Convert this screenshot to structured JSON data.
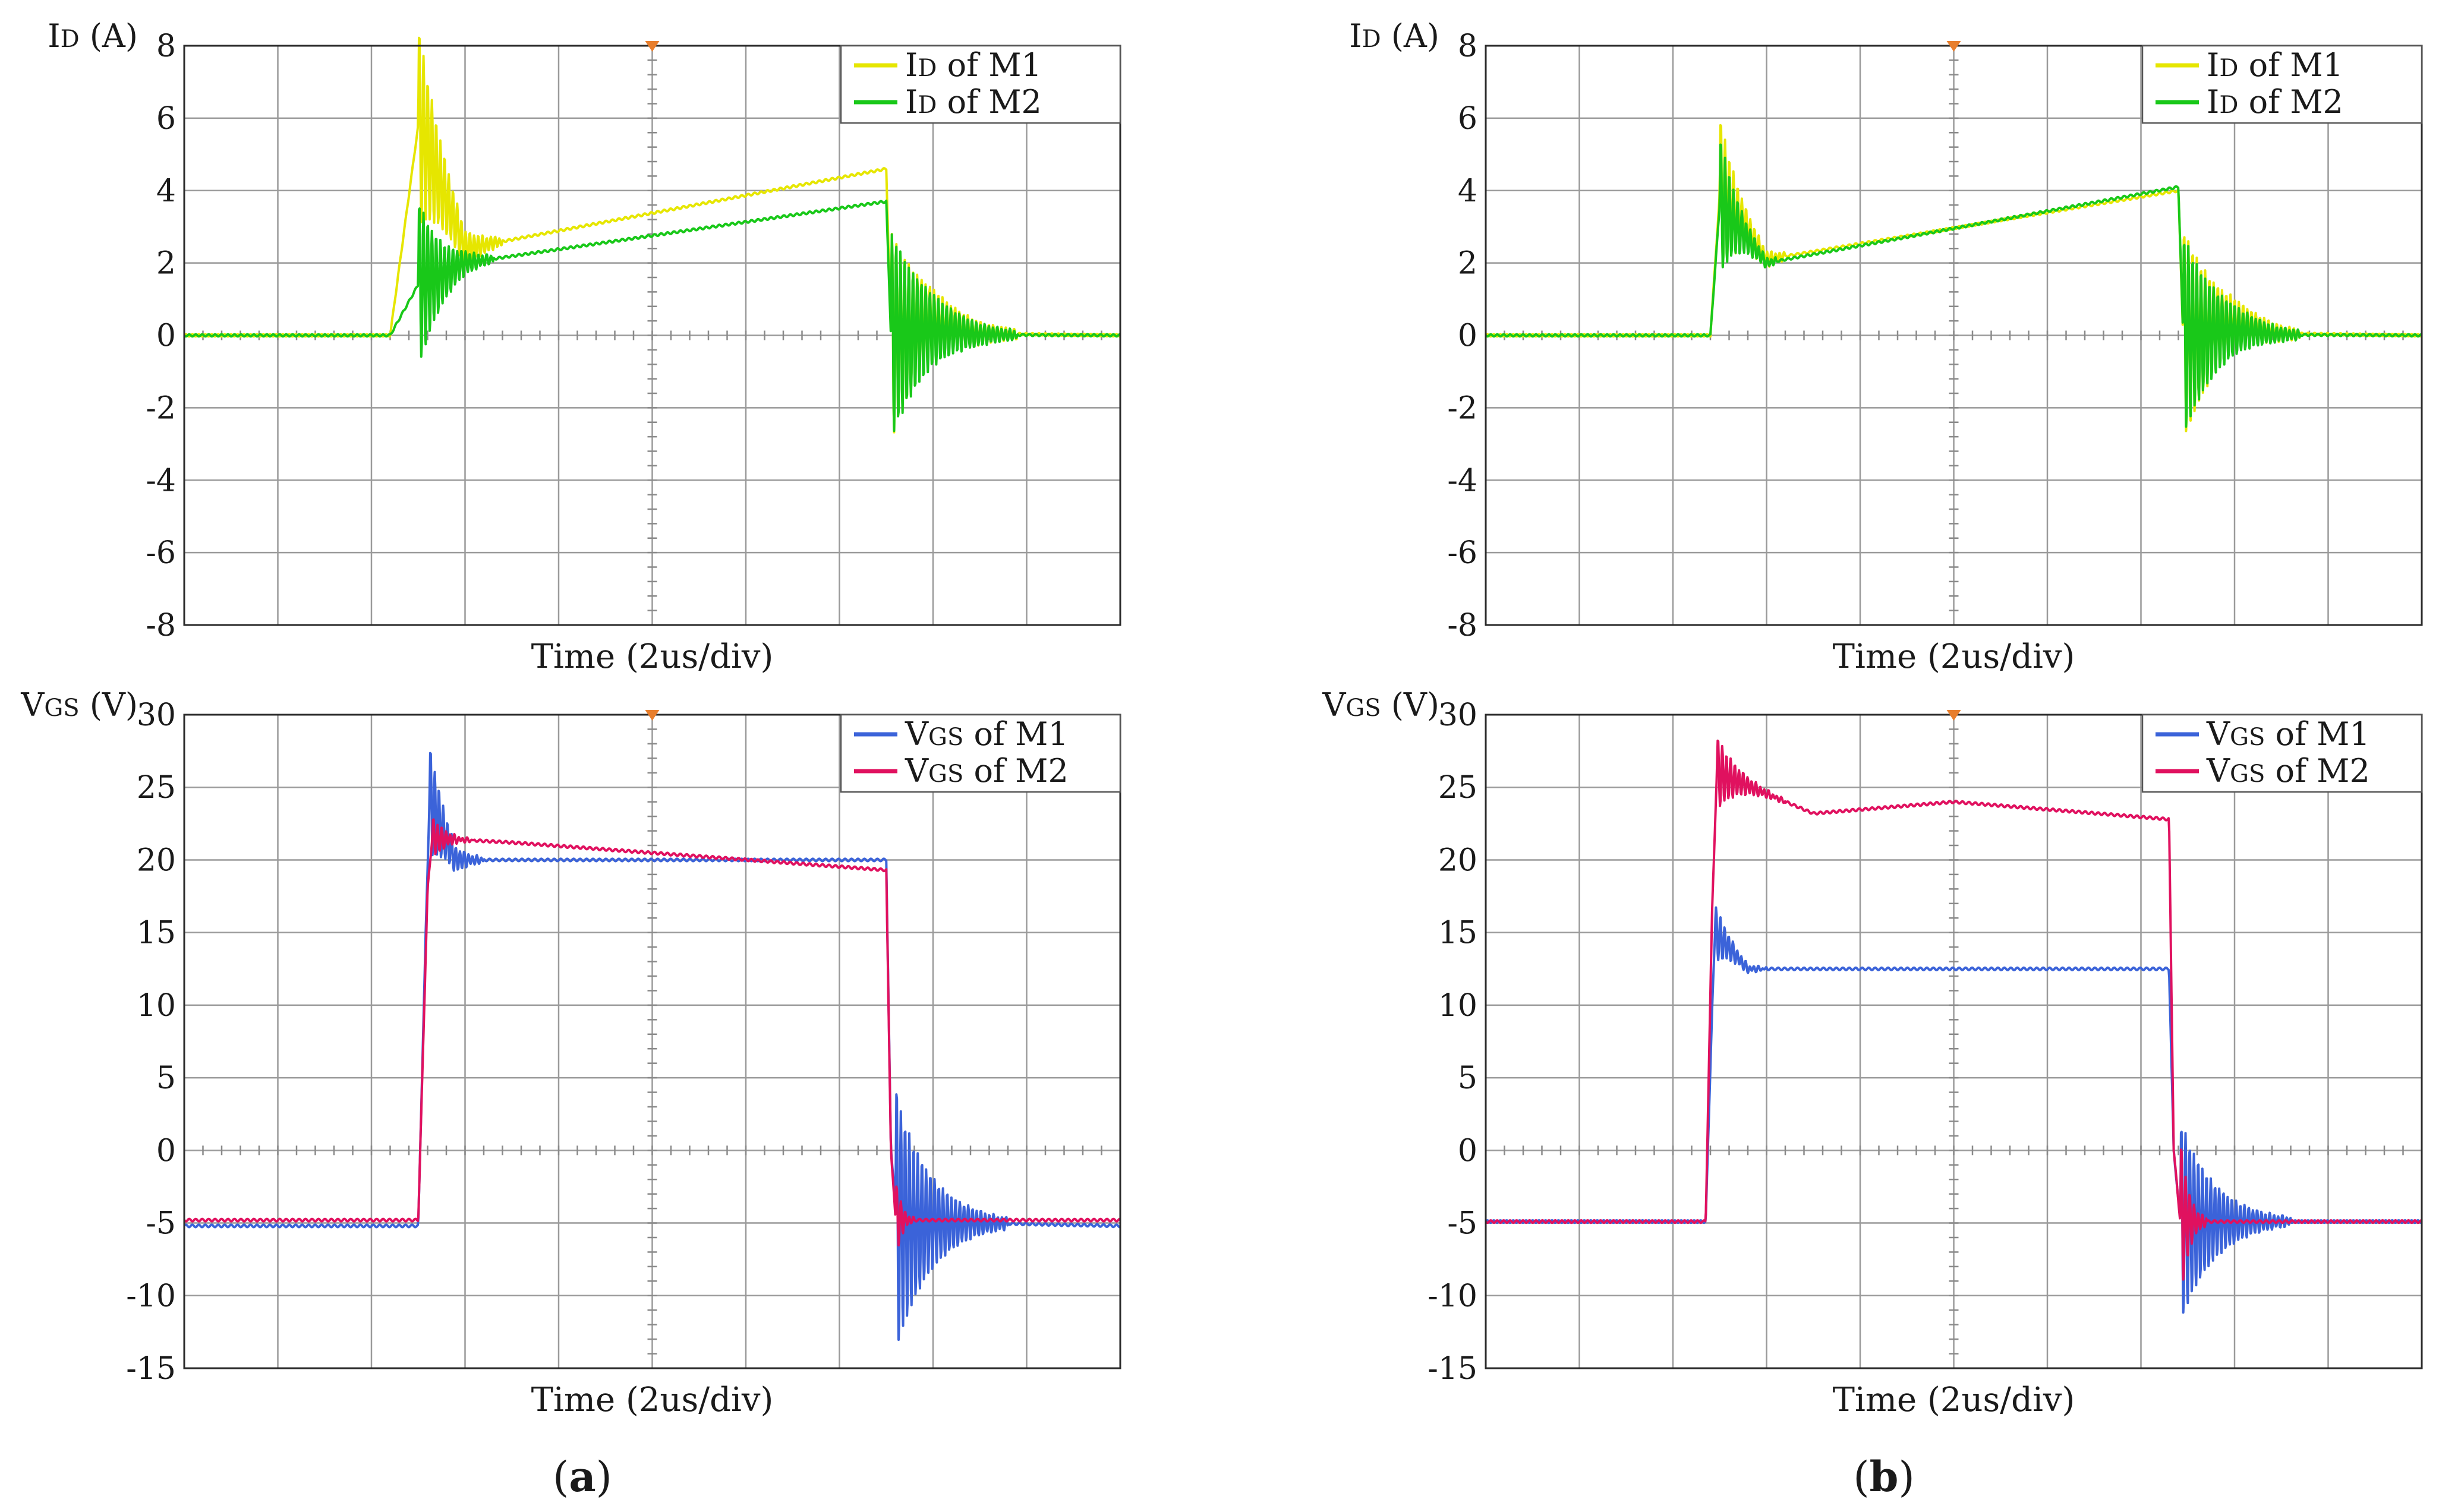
{
  "figure": {
    "captions": [
      {
        "prefix": "(",
        "letter": "a",
        "suffix": ")"
      },
      {
        "prefix": "(",
        "letter": "b",
        "suffix": ")"
      }
    ]
  },
  "chart_data": [
    {
      "id": "a-current",
      "type": "line",
      "panel": "a",
      "ylabel_main": "I",
      "ylabel_sub": "D",
      "ylabel_unit": " (A)",
      "xlabel": "Time (2us/div)",
      "ylim": [
        -8,
        8
      ],
      "yticks": [
        8,
        6,
        4,
        2,
        0,
        -2,
        -4,
        -6,
        -8
      ],
      "x_divisions": 10,
      "grid": true,
      "legend_position": "top-right",
      "series": [
        {
          "key": "m1",
          "name_main": "I",
          "name_sub": "D",
          "name_rest": " of M1",
          "color": "#e6e600",
          "x": [
            0,
            2.2,
            2.5,
            3.0,
            7.5,
            7.55,
            8.0,
            8.5,
            10
          ],
          "y": [
            0,
            0,
            5.8,
            2.4,
            4.6,
            0.0,
            0.3,
            0.05,
            0
          ],
          "ringing": [
            {
              "t0": 2.5,
              "t1": 3.4,
              "amp": 2.8
            },
            {
              "t0": 7.55,
              "t1": 8.9,
              "amp": 2.9
            }
          ]
        },
        {
          "key": "m2",
          "name_main": "I",
          "name_sub": "D",
          "name_rest": " of M2",
          "color": "#19c819",
          "x": [
            0,
            2.2,
            2.5,
            3.0,
            7.5,
            7.55,
            8.0,
            8.5,
            10
          ],
          "y": [
            0,
            0,
            1.4,
            2.0,
            3.7,
            0.0,
            0.15,
            0.02,
            0
          ],
          "ringing": [
            {
              "t0": 2.5,
              "t1": 3.3,
              "amp": 2.4
            },
            {
              "t0": 7.55,
              "t1": 8.9,
              "amp": 2.9
            }
          ]
        }
      ]
    },
    {
      "id": "b-current",
      "type": "line",
      "panel": "b",
      "ylabel_main": "I",
      "ylabel_sub": "D",
      "ylabel_unit": " (A)",
      "xlabel": "Time (2us/div)",
      "ylim": [
        -8,
        8
      ],
      "yticks": [
        8,
        6,
        4,
        2,
        0,
        -2,
        -4,
        -6,
        -8
      ],
      "x_divisions": 10,
      "grid": true,
      "legend_position": "top-right",
      "series": [
        {
          "key": "m1",
          "name_main": "I",
          "name_sub": "D",
          "name_rest": " of M1",
          "color": "#e6e600",
          "x": [
            0,
            2.4,
            2.5,
            3.0,
            7.4,
            7.45,
            8.0,
            8.5,
            10
          ],
          "y": [
            0,
            0,
            3.9,
            2.1,
            4.0,
            0.0,
            0.3,
            0.05,
            0
          ],
          "ringing": [
            {
              "t0": 2.5,
              "t1": 3.2,
              "amp": 2.2
            },
            {
              "t0": 7.45,
              "t1": 8.7,
              "amp": 3.0
            }
          ]
        },
        {
          "key": "m2",
          "name_main": "I",
          "name_sub": "D",
          "name_rest": " of M2",
          "color": "#19c819",
          "x": [
            0,
            2.4,
            2.5,
            3.0,
            7.4,
            7.45,
            8.0,
            8.5,
            10
          ],
          "y": [
            0,
            0,
            3.6,
            2.0,
            4.1,
            0.0,
            0.15,
            0.02,
            0
          ],
          "ringing": [
            {
              "t0": 2.5,
              "t1": 3.1,
              "amp": 2.0
            },
            {
              "t0": 7.45,
              "t1": 8.7,
              "amp": 2.8
            }
          ]
        }
      ]
    },
    {
      "id": "a-voltage",
      "type": "line",
      "panel": "a",
      "ylabel_main": "V",
      "ylabel_sub": "GS",
      "ylabel_unit": " (V)",
      "xlabel": "Time (2us/div)",
      "ylim": [
        -15,
        30
      ],
      "yticks": [
        30,
        25,
        20,
        15,
        10,
        5,
        0,
        -5,
        -10,
        -15
      ],
      "x_divisions": 10,
      "grid": true,
      "legend_position": "top-right",
      "series": [
        {
          "key": "m1",
          "name_main": "V",
          "name_sub": "GS",
          "name_rest": " of M1",
          "color": "#3b63d9",
          "x": [
            0,
            2.5,
            2.58,
            2.62,
            2.9,
            7.5,
            7.55,
            7.62,
            8.5,
            10
          ],
          "y": [
            -5.2,
            -5.2,
            15,
            24,
            20,
            20,
            0,
            -5.0,
            -5.0,
            -5.2
          ],
          "ringing": [
            {
              "t0": 2.62,
              "t1": 3.2,
              "amp": 4.0
            },
            {
              "t0": 7.6,
              "t1": 8.8,
              "amp": 9.0
            }
          ]
        },
        {
          "key": "m2",
          "name_main": "V",
          "name_sub": "GS",
          "name_rest": " of M2",
          "color": "#e0115f",
          "x": [
            0,
            2.5,
            2.6,
            2.65,
            3.5,
            7.5,
            7.55,
            7.6,
            8.5,
            10
          ],
          "y": [
            -4.8,
            -4.8,
            18,
            21.5,
            21.2,
            19.3,
            0,
            -4.8,
            -4.8,
            -4.8
          ],
          "ringing": [
            {
              "t0": 2.65,
              "t1": 3.1,
              "amp": 1.5
            },
            {
              "t0": 7.6,
              "t1": 7.8,
              "amp": 3.0
            }
          ]
        }
      ]
    },
    {
      "id": "b-voltage",
      "type": "line",
      "panel": "b",
      "ylabel_main": "V",
      "ylabel_sub": "GS",
      "ylabel_unit": " (V)",
      "xlabel": "Time (2us/div)",
      "ylim": [
        -15,
        30
      ],
      "yticks": [
        30,
        25,
        20,
        15,
        10,
        5,
        0,
        -5,
        -10,
        -15
      ],
      "x_divisions": 10,
      "grid": true,
      "legend_position": "top-right",
      "series": [
        {
          "key": "m1",
          "name_main": "V",
          "name_sub": "GS",
          "name_rest": " of M1",
          "color": "#3b63d9",
          "x": [
            0,
            2.35,
            2.42,
            2.45,
            2.8,
            7.3,
            7.35,
            7.42,
            8.5,
            10
          ],
          "y": [
            -4.9,
            -4.9,
            10,
            15,
            12.5,
            12.5,
            0,
            -4.9,
            -4.9,
            -4.9
          ],
          "ringing": [
            {
              "t0": 2.45,
              "t1": 3.0,
              "amp": 2.0
            },
            {
              "t0": 7.42,
              "t1": 8.6,
              "amp": 7.0
            }
          ]
        },
        {
          "key": "m2",
          "name_main": "V",
          "name_sub": "GS",
          "name_rest": " of M2",
          "color": "#e0115f",
          "x": [
            0,
            2.35,
            2.42,
            2.47,
            3.5,
            5.0,
            7.3,
            7.35,
            7.42,
            8.5,
            10
          ],
          "y": [
            -4.9,
            -4.9,
            17,
            26,
            23.2,
            24,
            22.8,
            0,
            -4.9,
            -4.9,
            -4.9
          ],
          "ringing": [
            {
              "t0": 2.47,
              "t1": 3.2,
              "amp": 2.5
            },
            {
              "t0": 7.42,
              "t1": 7.7,
              "amp": 6.0
            }
          ]
        }
      ]
    }
  ]
}
